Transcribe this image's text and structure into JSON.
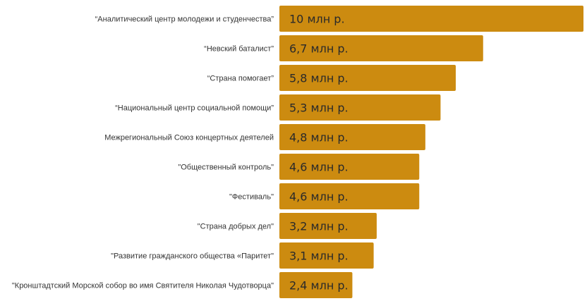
{
  "chart_data": {
    "type": "bar",
    "orientation": "horizontal",
    "categories": [
      "“Аналитический центр молодежи и студенчества”",
      "“Невский баталист”",
      "“Страна помогает”",
      "“Национальный центр социальной помощи”",
      "Межрегиональный Союз концертных деятелей",
      "\"Общественный контроль\"",
      "\"Фестиваль\"",
      "\"Страна добрых дел\"",
      "\"Развитие гражданского общества «Паритет\"",
      "\"Кронштадтский Морской собор во имя Святителя Николая Чудотворца\""
    ],
    "values": [
      10,
      6.7,
      5.8,
      5.3,
      4.8,
      4.6,
      4.6,
      3.2,
      3.1,
      2.4
    ],
    "value_labels": [
      "10 млн р.",
      "6,7 млн р.",
      "5,8 млн р.",
      "5,3 млн р.",
      "4,8 млн р.",
      "4,6 млн р.",
      "4,6 млн р.",
      "3,2 млн р.",
      "3,1 млн р.",
      "2,4 млн р."
    ],
    "title": "",
    "xlabel": "",
    "ylabel": "",
    "xlim": [
      0,
      10
    ],
    "grid": false,
    "legend": "none",
    "bar_color": "#CC8B10",
    "label_color": "#333333",
    "value_label_color": "#2a2a2a"
  }
}
